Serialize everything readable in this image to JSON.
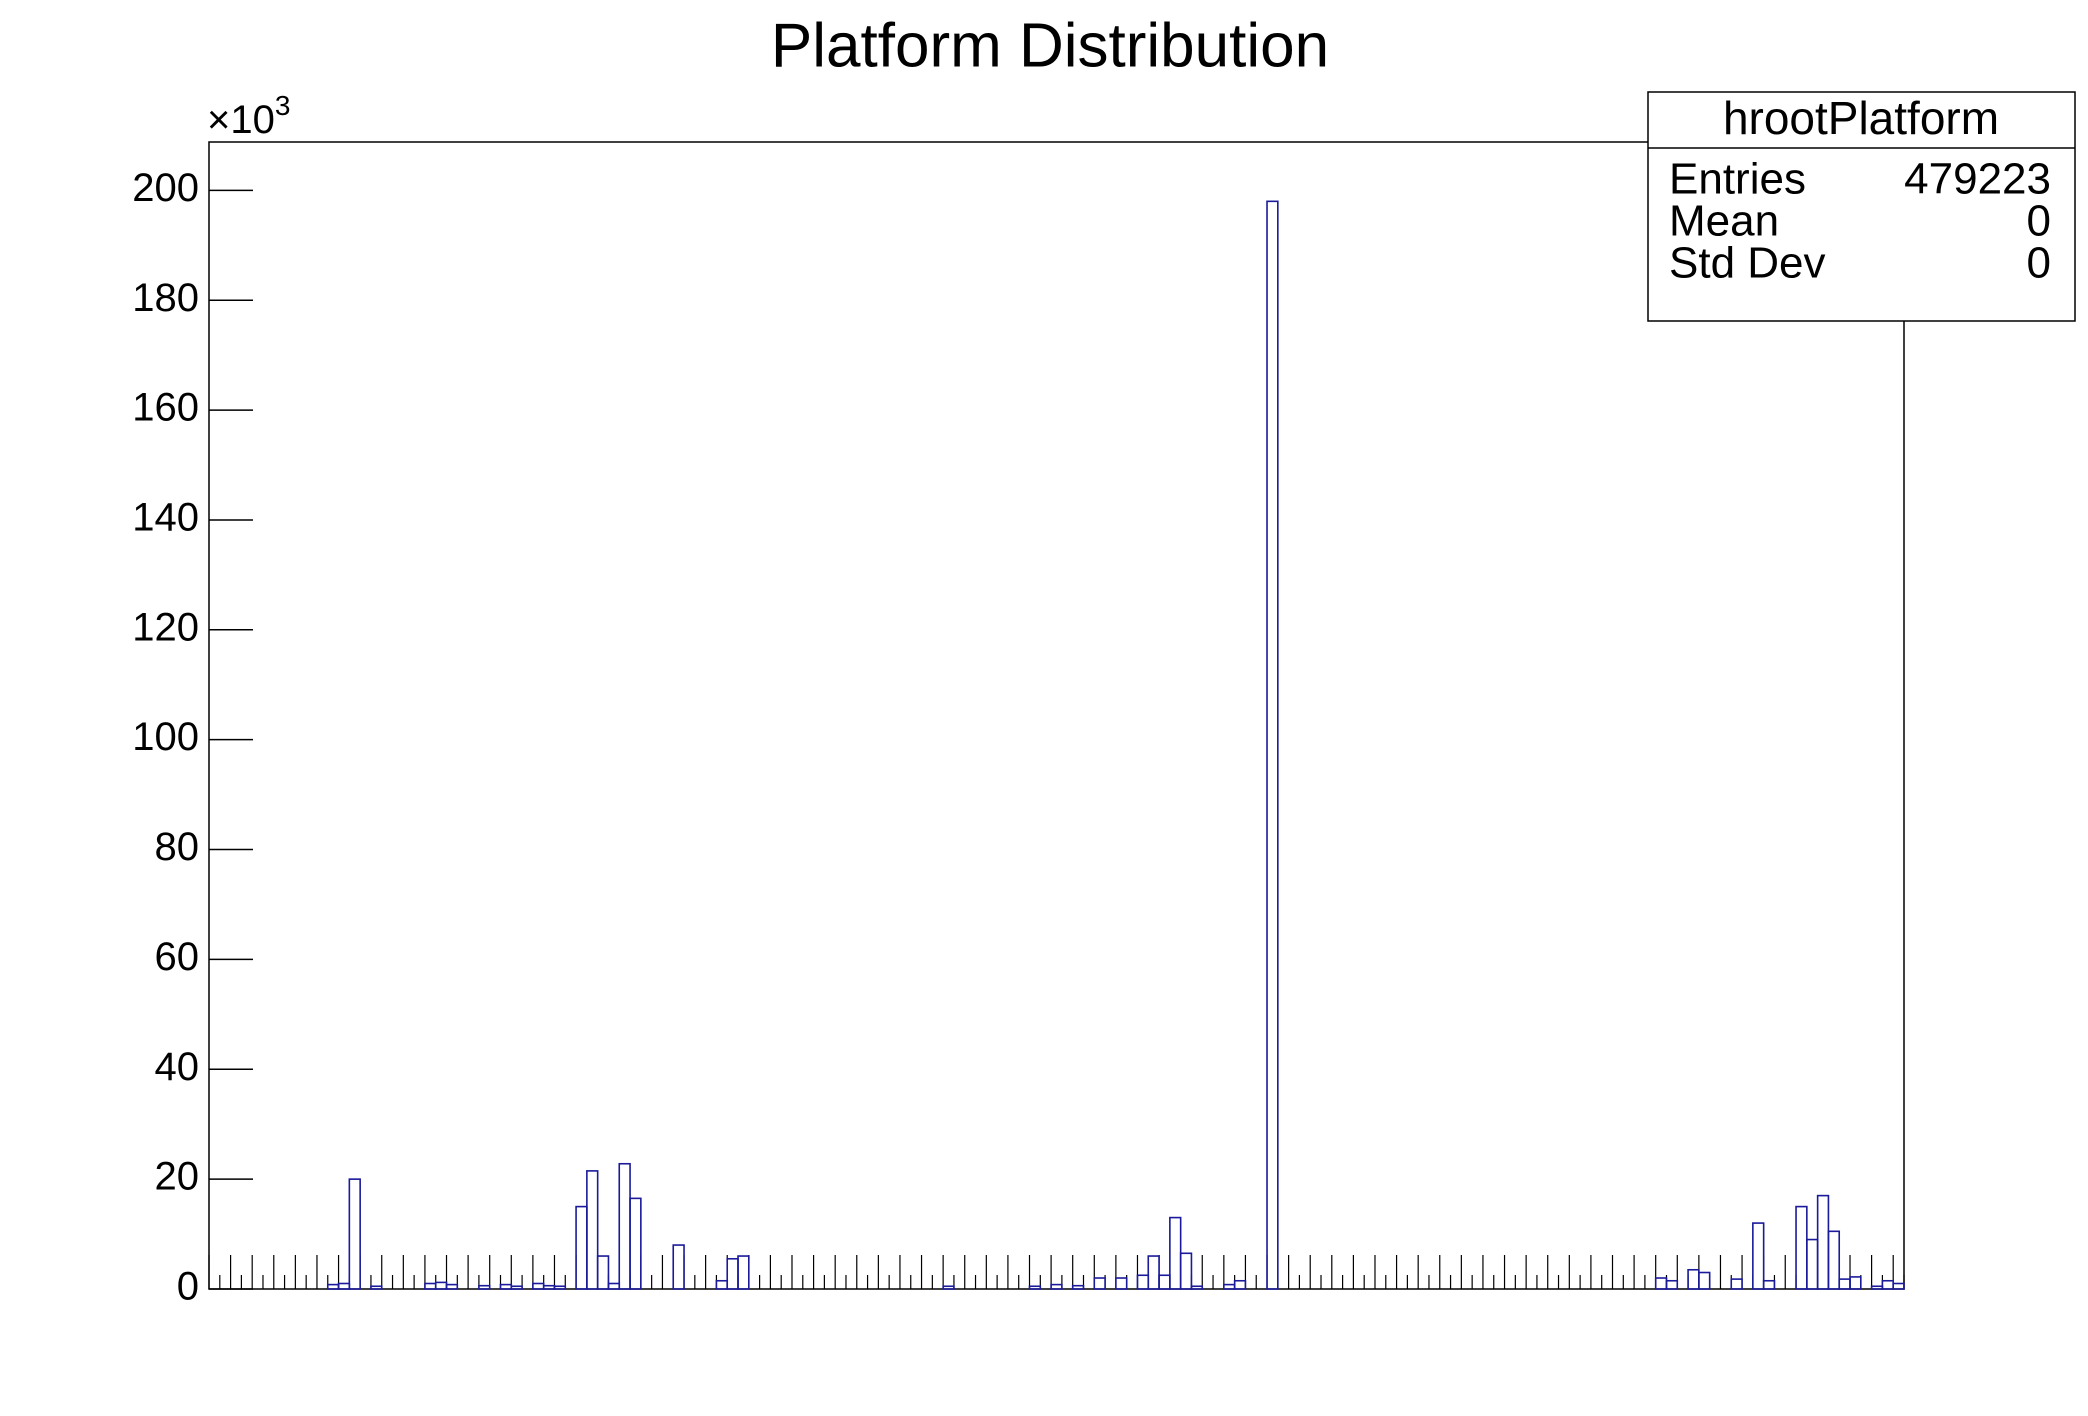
{
  "chart_data": {
    "type": "bar",
    "title": "Platform Distribution",
    "y_multiplier": {
      "base": "×10",
      "exponent": "3"
    },
    "categories": [
      null,
      null,
      null,
      null,
      null,
      null,
      null,
      null,
      null,
      null,
      null,
      null,
      null,
      null,
      null,
      null,
      null,
      null,
      null,
      null,
      null,
      null,
      null,
      null,
      null,
      null,
      null,
      null,
      null,
      null,
      null,
      null,
      null,
      null,
      null,
      null,
      null,
      null,
      null,
      null,
      null,
      null,
      null,
      null,
      null,
      null,
      null,
      null,
      null,
      null,
      null,
      null,
      null,
      null,
      null,
      null,
      null,
      null,
      null,
      null,
      null,
      null,
      null,
      null,
      null,
      null,
      null,
      null,
      null,
      null,
      null,
      null,
      null,
      null,
      null,
      null,
      null,
      null,
      null,
      null,
      null,
      null,
      null,
      null,
      null,
      null,
      null,
      null,
      null,
      null,
      null,
      null,
      null,
      null,
      null,
      null,
      null,
      null,
      null,
      null,
      null,
      null,
      null,
      null,
      null,
      null,
      null,
      null,
      null,
      null,
      null,
      null,
      null,
      null,
      null,
      null,
      null,
      null,
      null,
      null,
      null,
      null,
      null,
      null,
      null,
      null,
      null,
      null,
      null,
      null,
      null,
      null,
      null,
      null,
      null,
      null,
      null,
      null,
      null,
      null,
      null,
      null,
      null,
      null,
      null,
      null,
      null,
      null,
      null,
      null,
      null,
      null,
      null,
      null,
      null,
      null,
      null
    ],
    "values": [
      0,
      0,
      0,
      0,
      0,
      0,
      0,
      0,
      0,
      0,
      0,
      0.8,
      1,
      20,
      0,
      0.5,
      0,
      0,
      0,
      0,
      1,
      1.2,
      0.8,
      0,
      0,
      0.6,
      0,
      0.8,
      0.5,
      0,
      1,
      0.6,
      0.5,
      0,
      15,
      21.5,
      6,
      1,
      22.8,
      16.5,
      0,
      0,
      0,
      8,
      0,
      0,
      0,
      1.5,
      5.5,
      6,
      0,
      0,
      0,
      0,
      0,
      0,
      0,
      0,
      0,
      0,
      0,
      0,
      0,
      0,
      0,
      0,
      0,
      0,
      0.5,
      0,
      0,
      0,
      0,
      0,
      0,
      0,
      0.5,
      0,
      0.8,
      0,
      0.6,
      0,
      2,
      0,
      2,
      0,
      2.5,
      6,
      2.5,
      13,
      6.5,
      0.5,
      0,
      0,
      0.8,
      1.5,
      0,
      0,
      198,
      0,
      0,
      0,
      0,
      0,
      0,
      0,
      0,
      0,
      0,
      0,
      0,
      0,
      0,
      0,
      0,
      0,
      0,
      0,
      0,
      0,
      0,
      0,
      0,
      0,
      0,
      0,
      0,
      0,
      0,
      0,
      0,
      0,
      0,
      0,
      2,
      1.5,
      0,
      3.5,
      3,
      0,
      0,
      1.8,
      0,
      12,
      1.5,
      0,
      0,
      15,
      9,
      17,
      10.5,
      1.8,
      2.2,
      0,
      0.5,
      1.5,
      1
    ],
    "color": "#1a1a9a",
    "ylim": [
      0,
      208.8
    ],
    "yticks": [
      0,
      20,
      40,
      60,
      80,
      100,
      120,
      140,
      160,
      180,
      200
    ],
    "stats": {
      "title": "hrootPlatform",
      "rows": [
        {
          "label": "Entries",
          "value": "479223"
        },
        {
          "label": "Mean",
          "value": "0"
        },
        {
          "label": "Std Dev",
          "value": "0"
        }
      ]
    }
  }
}
